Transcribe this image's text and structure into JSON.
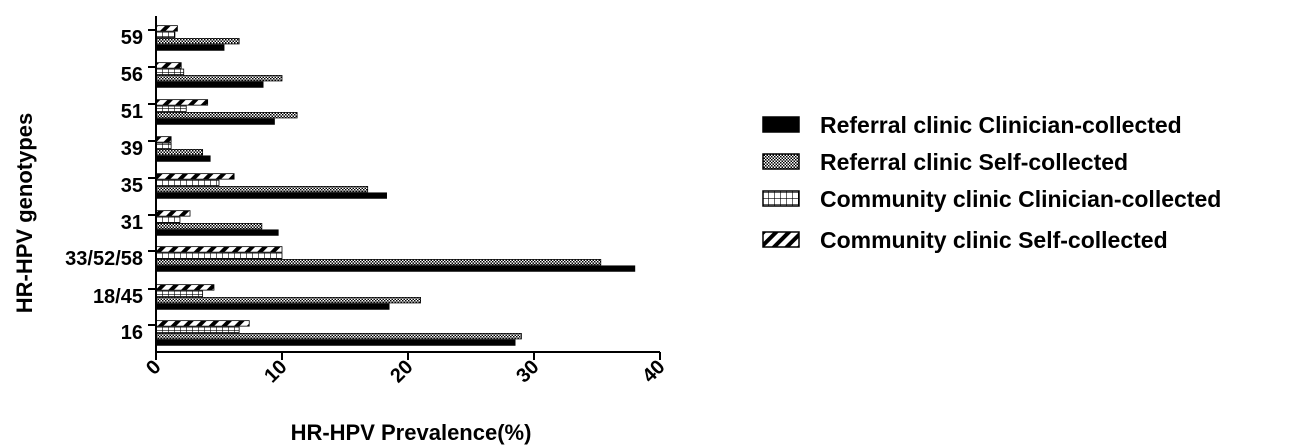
{
  "chart_data": {
    "type": "bar",
    "orientation": "horizontal",
    "categories": [
      "16",
      "18/45",
      "33/52/58",
      "31",
      "35",
      "39",
      "51",
      "56",
      "59"
    ],
    "series": [
      {
        "name": "Referral clinic Clinician-collected",
        "pattern": "solid",
        "values": [
          28.5,
          18.5,
          38.0,
          9.7,
          18.3,
          4.3,
          9.4,
          8.5,
          5.4
        ]
      },
      {
        "name": "Referral clinic Self-collected",
        "pattern": "checker",
        "values": [
          29.0,
          21.0,
          35.3,
          8.4,
          16.8,
          3.7,
          11.2,
          10.0,
          6.6
        ]
      },
      {
        "name": "Community clinic Clinician-collected",
        "pattern": "grid",
        "values": [
          6.6,
          3.7,
          10.0,
          1.9,
          5.0,
          1.2,
          2.4,
          2.2,
          1.5
        ]
      },
      {
        "name": "Community clinic Self-collected",
        "pattern": "hatch",
        "values": [
          7.4,
          4.6,
          10.0,
          2.7,
          6.2,
          1.2,
          4.1,
          2.0,
          1.7
        ]
      }
    ],
    "xlabel": "HR-HPV Prevalence(%)",
    "ylabel": "HR-HPV genotypes",
    "xlim": [
      0,
      40
    ],
    "xticks": [
      0,
      10,
      20,
      30,
      40
    ],
    "grid": false,
    "legend_position": "right"
  }
}
